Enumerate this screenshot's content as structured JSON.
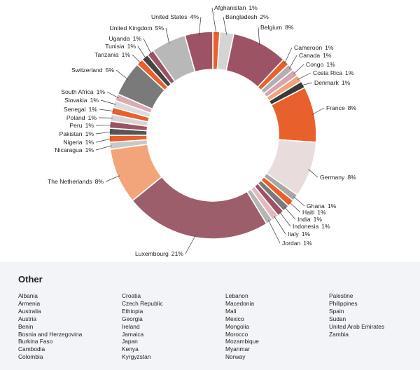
{
  "chart_data": {
    "type": "pie",
    "donut": true,
    "title": "",
    "slices": [
      {
        "label": "Afghanistan",
        "pct_label": "1%",
        "value": 1,
        "color": "#e8612c"
      },
      {
        "label": "Bangladesh",
        "pct_label": "2%",
        "value": 2,
        "color": "#d4d4d4"
      },
      {
        "label": "Belgium",
        "pct_label": "8%",
        "value": 8,
        "color": "#9c5465"
      },
      {
        "label": "Cameroon",
        "pct_label": "1%",
        "value": 1,
        "color": "#e8612c"
      },
      {
        "label": "Canada",
        "pct_label": "1%",
        "value": 1,
        "color": "#b0b0b0"
      },
      {
        "label": "Congo",
        "pct_label": "1%",
        "value": 1,
        "color": "#d7a3ae"
      },
      {
        "label": "Costa Rica",
        "pct_label": "1%",
        "value": 1,
        "color": "#f2a57a"
      },
      {
        "label": "Denmark",
        "pct_label": "1%",
        "value": 1,
        "color": "#3a3a3a"
      },
      {
        "label": "France",
        "pct_label": "8%",
        "value": 8,
        "color": "#e8612c"
      },
      {
        "label": "Germany",
        "pct_label": "8%",
        "value": 8,
        "color": "#e8dcdc"
      },
      {
        "label": "Ghana",
        "pct_label": "1%",
        "value": 1,
        "color": "#a8a8a8"
      },
      {
        "label": "Haiti",
        "pct_label": "1%",
        "value": 1,
        "color": "#e8612c"
      },
      {
        "label": "India",
        "pct_label": "1%",
        "value": 1,
        "color": "#7a7a7a"
      },
      {
        "label": "Indonesia",
        "pct_label": "1%",
        "value": 1,
        "color": "#9c5465"
      },
      {
        "label": "Italy",
        "pct_label": "1%",
        "value": 1,
        "color": "#e2b9c1"
      },
      {
        "label": "Jordan",
        "pct_label": "1%",
        "value": 1,
        "color": "#b5b5b5"
      },
      {
        "label": "Luxembourg",
        "pct_label": "21%",
        "value": 21,
        "color": "#9c5e6a"
      },
      {
        "label": "The Netherlands",
        "pct_label": "8%",
        "value": 8,
        "color": "#f2a57a"
      },
      {
        "label": "Nicaragua",
        "pct_label": "1%",
        "value": 1,
        "color": "#c8c8c8"
      },
      {
        "label": "Nigeria",
        "pct_label": "1%",
        "value": 1,
        "color": "#e8612c"
      },
      {
        "label": "Pakistan",
        "pct_label": "1%",
        "value": 1,
        "color": "#555555"
      },
      {
        "label": "Peru",
        "pct_label": "1%",
        "value": 1,
        "color": "#9c5465"
      },
      {
        "label": "Poland",
        "pct_label": "1%",
        "value": 1,
        "color": "#d6d6d6"
      },
      {
        "label": "Senegal",
        "pct_label": "1%",
        "value": 1,
        "color": "#e8612c"
      },
      {
        "label": "Slovakia",
        "pct_label": "1%",
        "value": 1,
        "color": "#dcdcdc"
      },
      {
        "label": "South Africa",
        "pct_label": "1%",
        "value": 1,
        "color": "#dcaab4"
      },
      {
        "label": "Switzerland",
        "pct_label": "5%",
        "value": 5,
        "color": "#7a7a7a"
      },
      {
        "label": "Tanzania",
        "pct_label": "1%",
        "value": 1,
        "color": "#e8612c"
      },
      {
        "label": "Tunisia",
        "pct_label": "1%",
        "value": 1,
        "color": "#444444"
      },
      {
        "label": "Uganda",
        "pct_label": "1%",
        "value": 1,
        "color": "#9c5465"
      },
      {
        "label": "United Kingdom",
        "pct_label": "5%",
        "value": 5,
        "color": "#b8b8b8"
      },
      {
        "label": "United States",
        "pct_label": "4%",
        "value": 4,
        "color": "#9c5465"
      }
    ]
  },
  "other": {
    "title": "Other",
    "columns": [
      [
        "Albania",
        "Armenia",
        "Australia",
        "Austria",
        "Benin",
        "Bosnia and Herzegovina",
        "Burkina Faso",
        "Cambodia",
        "Colombia"
      ],
      [
        "Croatia",
        "Czech Republic",
        "Ethiopia",
        "Georgia",
        "Ireland",
        "Jamaica",
        "Japan",
        "Kenya",
        "Kyrgyzstan"
      ],
      [
        "Lebanon",
        "Macedonia",
        "Mali",
        "Mexico",
        "Mongolia",
        "Morocco",
        "Mozambique",
        "Myanmar",
        "Norway"
      ],
      [
        "Palestine",
        "Philippines",
        "Spain",
        "Sudan",
        "United Arab Emirates",
        "Zambia"
      ]
    ]
  }
}
